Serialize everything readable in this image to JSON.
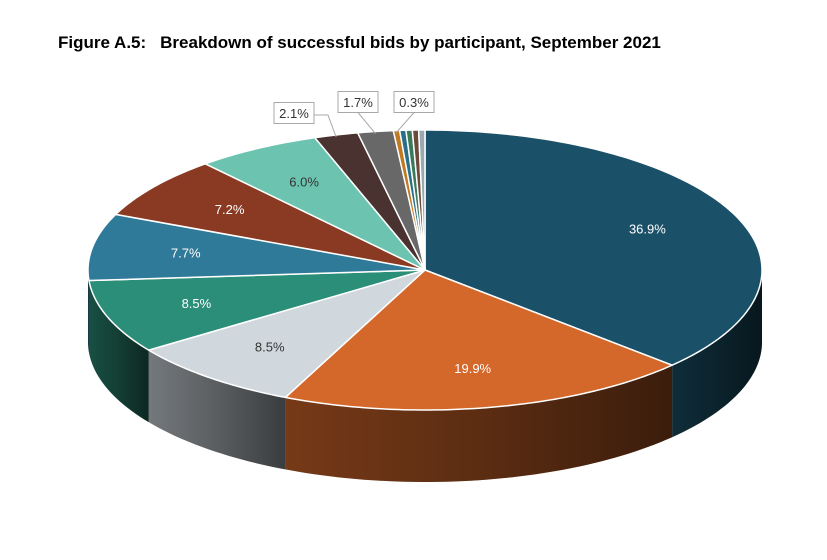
{
  "figure": {
    "number": "Figure A.5:",
    "title": "Breakdown of successful bids by participant, September 2021"
  },
  "chart_data": {
    "type": "pie",
    "style": "3d-exploded-none",
    "values": [
      36.9,
      19.9,
      8.5,
      8.5,
      7.7,
      7.2,
      6.0,
      2.1,
      1.7,
      0.3,
      0.3,
      0.3,
      0.3,
      0.3
    ],
    "labels": [
      "36.9%",
      "19.9%",
      "8.5%",
      "8.5%",
      "7.7%",
      "7.2%",
      "6.0%",
      "2.1%",
      "1.7%",
      "0.3%",
      "",
      "",
      "",
      ""
    ],
    "label_placement": [
      "inside",
      "inside",
      "inside",
      "inside",
      "inside",
      "inside",
      "inside",
      "callout",
      "callout",
      "callout",
      "none",
      "none",
      "none",
      "none"
    ],
    "colors": [
      "#1a5068",
      "#d4682a",
      "#d0d8de",
      "#2b8e78",
      "#2e7a98",
      "#8a3a22",
      "#6cc4b0",
      "#4a3230",
      "#686868",
      "#c07a22",
      "#2a6f8a",
      "#3a7a5a",
      "#6a4a3a",
      "#9aa8b0"
    ],
    "label_colors": [
      "#ffffff",
      "#ffffff",
      "#333333",
      "#ffffff",
      "#ffffff",
      "#ffffff",
      "#333333",
      "#333333",
      "#333333",
      "#333333",
      "",
      "",
      "",
      ""
    ],
    "start": "12 o'clock",
    "direction": "clockwise",
    "legend": "none"
  }
}
